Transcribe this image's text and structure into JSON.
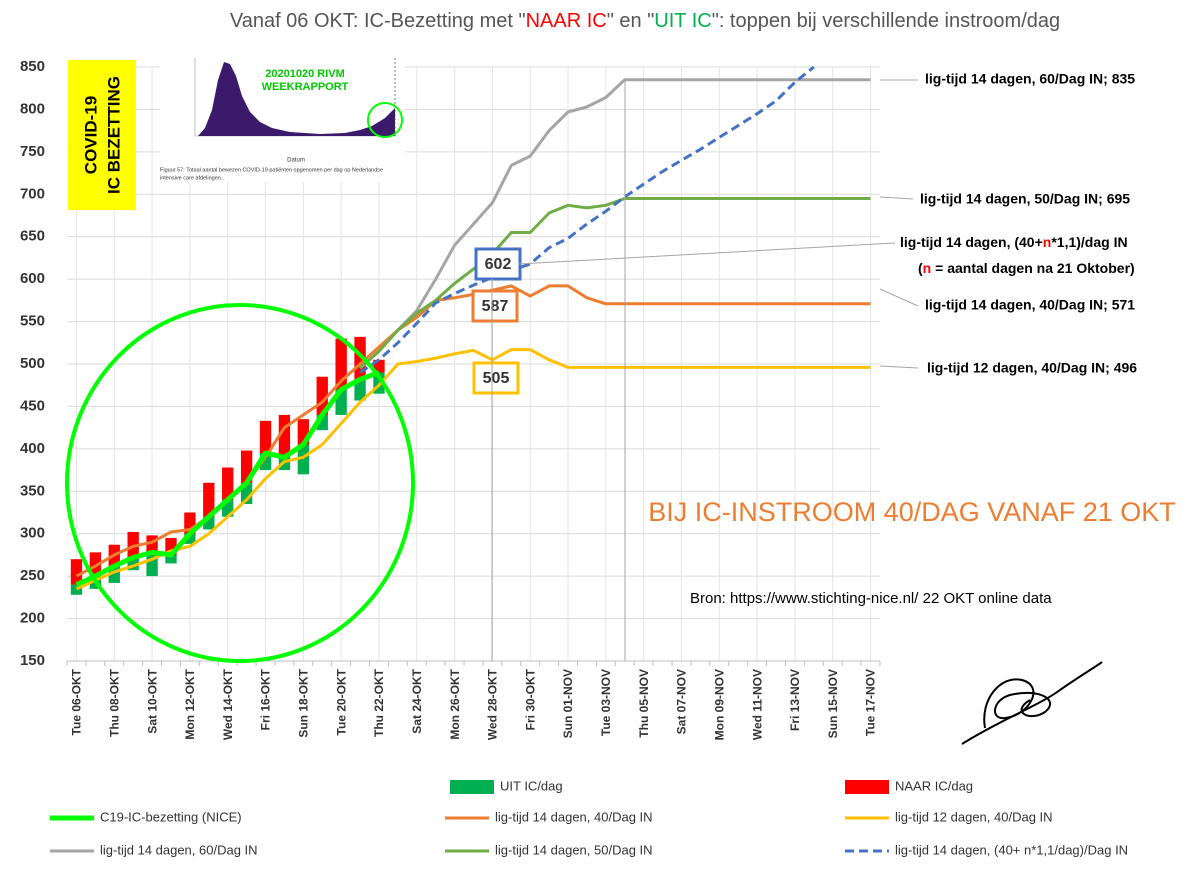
{
  "chart_data": {
    "type": "combo",
    "title": [
      "Vanaf 06 OKT: IC-Bezetting met \"",
      "NAAR IC",
      "\" en \"",
      "UIT IC",
      "\": toppen bij verschillende instroom/dag"
    ],
    "categories": [
      "Tue 06-OKT",
      null,
      "Thu 08-OKT",
      null,
      "Sat 10-OKT",
      null,
      "Mon 12-OKT",
      null,
      "Wed 14-OKT",
      null,
      "Fri 16-OKT",
      null,
      "Sun 18-OKT",
      null,
      "Tue 20-OKT",
      null,
      "Thu 22-OKT",
      null,
      "Sat 24-OKT",
      null,
      "Mon 26-OKT",
      null,
      "Wed 28-OKT",
      null,
      "Fri 30-OKT",
      null,
      "Sun 01-NOV",
      null,
      "Tue 03-NOV",
      null,
      "Thu 05-NOV",
      null,
      "Sat 07-NOV",
      null,
      "Mon 09-NOV",
      null,
      "Wed 11-NOV",
      null,
      "Fri 13-NOV",
      null,
      "Sun 15-NOV",
      null,
      "Tue 17-NOV"
    ],
    "ylim": [
      150,
      850
    ],
    "yticks": [
      150,
      200,
      250,
      300,
      350,
      400,
      450,
      500,
      550,
      600,
      650,
      700,
      750,
      800,
      850
    ],
    "grid": true,
    "series": [
      {
        "name": "UIT IC/dag",
        "type": "bar",
        "direction": "down",
        "color": "#00b050",
        "values": [
          12,
          15,
          20,
          15,
          28,
          10,
          12,
          15,
          20,
          25,
          20,
          15,
          35,
          18,
          30,
          25,
          25,
          null,
          null,
          null,
          null,
          null,
          null,
          null,
          null,
          null,
          null,
          null,
          null,
          null,
          null,
          null,
          null,
          null,
          null,
          null,
          null,
          null,
          null,
          null,
          null,
          null,
          null
        ]
      },
      {
        "name": "NAAR IC/dag",
        "type": "bar",
        "direction": "up",
        "color": "#ff0000",
        "values": [
          30,
          28,
          25,
          30,
          20,
          20,
          25,
          40,
          38,
          38,
          38,
          50,
          30,
          45,
          60,
          50,
          15,
          null,
          null,
          null,
          null,
          null,
          null,
          null,
          null,
          null,
          null,
          null,
          null,
          null,
          null,
          null,
          null,
          null,
          null,
          null,
          null,
          null,
          null,
          null,
          null,
          null,
          null
        ]
      },
      {
        "name": "C19-IC-bezetting (NICE)",
        "type": "line",
        "color": "#00ff00",
        "width": 5,
        "values": [
          240,
          250,
          262,
          272,
          278,
          275,
          300,
          320,
          340,
          360,
          395,
          390,
          405,
          440,
          470,
          482,
          490,
          null,
          null,
          null,
          null,
          null,
          null,
          null,
          null,
          null,
          null,
          null,
          null,
          null,
          null,
          null,
          null,
          null,
          null,
          null,
          null,
          null,
          null,
          null,
          null,
          null,
          null
        ]
      },
      {
        "name": "lig-tijd 14 dagen, 40/Dag IN",
        "type": "line",
        "color": "#ed7d31",
        "width": 3,
        "values": [
          250,
          262,
          275,
          285,
          290,
          302,
          305,
          320,
          340,
          360,
          390,
          425,
          440,
          455,
          480,
          500,
          520,
          540,
          555,
          575,
          578,
          582,
          587,
          592,
          580,
          592,
          592,
          578,
          571,
          571,
          571,
          571,
          571,
          571,
          571,
          571,
          571,
          571,
          571,
          571,
          571,
          571,
          571
        ]
      },
      {
        "name": "lig-tijd 12 dagen, 40/Dag IN",
        "type": "line",
        "color": "#ffc000",
        "width": 3,
        "values": [
          235,
          245,
          255,
          262,
          270,
          280,
          285,
          300,
          320,
          340,
          365,
          385,
          390,
          405,
          430,
          455,
          475,
          500,
          503,
          507,
          512,
          516,
          505,
          517,
          517,
          505,
          496,
          496,
          496,
          496,
          496,
          496,
          496,
          496,
          496,
          496,
          496,
          496,
          496,
          496,
          496,
          496,
          496
        ]
      },
      {
        "name": "lig-tijd 14 dagen, 60/Dag IN",
        "type": "line",
        "color": "#a5a5a5",
        "width": 3,
        "values": [
          null,
          null,
          null,
          null,
          null,
          null,
          null,
          null,
          null,
          null,
          null,
          null,
          null,
          null,
          null,
          495,
          515,
          540,
          563,
          600,
          640,
          665,
          690,
          734,
          745,
          775,
          797,
          803,
          814,
          835,
          835,
          835,
          835,
          835,
          835,
          835,
          835,
          835,
          835,
          835,
          835,
          835,
          835
        ]
      },
      {
        "name": "lig-tijd 14 dagen, 50/Dag IN",
        "type": "line",
        "color": "#70ad47",
        "width": 3,
        "values": [
          null,
          null,
          null,
          null,
          null,
          null,
          null,
          null,
          null,
          null,
          null,
          null,
          null,
          null,
          null,
          495,
          515,
          540,
          560,
          575,
          595,
          612,
          630,
          655,
          655,
          678,
          687,
          684,
          687,
          695,
          695,
          695,
          695,
          695,
          695,
          695,
          695,
          695,
          695,
          695,
          695,
          695,
          695
        ]
      },
      {
        "name": "lig-tijd 14 dagen, (40+ n*1,1/dag)/Dag IN",
        "type": "line",
        "color": "#4472c4",
        "width": 3,
        "dashed": true,
        "values": [
          null,
          null,
          null,
          null,
          null,
          null,
          null,
          null,
          null,
          null,
          null,
          null,
          null,
          null,
          null,
          490,
          505,
          525,
          548,
          572,
          583,
          593,
          602,
          610,
          618,
          637,
          648,
          665,
          680,
          697,
          712,
          727,
          740,
          753,
          767,
          781,
          795,
          810,
          832,
          850,
          null,
          null,
          null
        ]
      }
    ],
    "annotations": [
      602,
      587,
      505
    ],
    "annotation_colors": [
      "#4472c4",
      "#ed7d31",
      "#ffc000"
    ],
    "right_labels": [
      "lig-tijd 14 dagen, 60/Dag IN; 835",
      "lig-tijd 14 dagen, 50/Dag IN; 695",
      "lig-tijd 14 dagen, 40/Dag IN; 571",
      "lig-tijd 12 dagen, 40/Dag IN; 496"
    ],
    "blue_label": [
      [
        "lig-tijd 14 dagen, (40+",
        "n",
        "*1,1)/dag IN"
      ],
      [
        "(",
        "n",
        " = aantal dagen na 21 Oktober)"
      ]
    ],
    "headline": "BIJ IC-INSTROOM 40/DAG VANAF 21 OKT",
    "source": "Bron: https://www.stichting-nice.nl/  22 OKT online data",
    "badge": [
      "COVID-19",
      "IC BEZETTING"
    ],
    "inset": {
      "title": [
        "20201020 RIVM",
        "WEEKRAPPORT"
      ],
      "xlabel": "Datum",
      "caption": [
        "Figuur 57: Totaal aantal bewezen COVID-19 patiënten opgenomen per dag op Nederlandse",
        "intensive care afdelingen."
      ]
    }
  }
}
